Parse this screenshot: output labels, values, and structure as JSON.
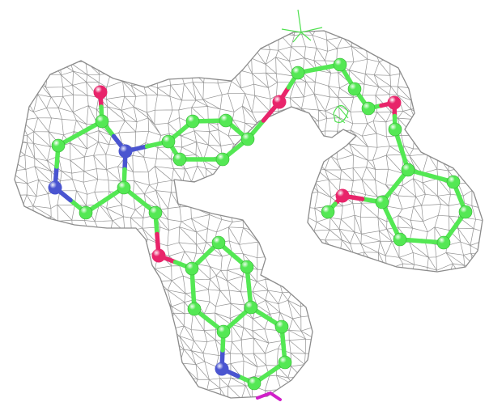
{
  "viewer": {
    "background": "#ffffff",
    "colors": {
      "carbon": "#54e854",
      "carbon_dark": "#2fb32f",
      "nitrogen": "#4a55d0",
      "oxygen": "#e8246a",
      "mesh": "#8c8c8c",
      "ligand_marker": "#4fe04f",
      "magenta_fragment": "#d020c8"
    }
  }
}
